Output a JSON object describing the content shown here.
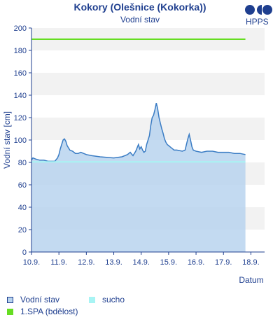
{
  "header": {
    "title": "Kokory (Olešnice (Kokorka))",
    "subtitle": "Vodní stav",
    "logo_text": "HPPS"
  },
  "legend": [
    {
      "label": "Vodní stav",
      "color": "#b8d4ee"
    },
    {
      "label": "sucho",
      "color": "#a8f4f4"
    },
    {
      "label": "1.SPA (bdělost)",
      "color": "#66dd22"
    }
  ],
  "chart_data": {
    "type": "area",
    "xlabel": "Datum",
    "ylabel": "Vodní stav [cm]",
    "xlim": [
      0,
      8.5
    ],
    "ylim": [
      0,
      200
    ],
    "y_ticks": [
      0,
      20,
      40,
      60,
      80,
      100,
      120,
      140,
      160,
      180,
      200
    ],
    "x_ticks": [
      "10.9.",
      "11.9.",
      "12.9.",
      "13.9.",
      "14.9.",
      "15.9.",
      "16.9.",
      "17.9.",
      "18.9."
    ],
    "grid": "horizontal bands",
    "series": [
      {
        "name": "Vodní stav",
        "color": "#3a7cc4",
        "fill": "#b8d4ee",
        "x": [
          0.0,
          0.05,
          0.15,
          0.3,
          0.45,
          0.6,
          0.75,
          0.85,
          0.95,
          1.0,
          1.05,
          1.1,
          1.15,
          1.2,
          1.25,
          1.3,
          1.4,
          1.5,
          1.6,
          1.7,
          1.8,
          1.9,
          2.0,
          2.2,
          2.5,
          3.0,
          3.3,
          3.5,
          3.6,
          3.7,
          3.8,
          3.9,
          3.95,
          4.0,
          4.05,
          4.1,
          4.15,
          4.2,
          4.25,
          4.3,
          4.35,
          4.4,
          4.45,
          4.5,
          4.55,
          4.6,
          4.65,
          4.7,
          4.75,
          4.8,
          4.85,
          4.9,
          4.95,
          5.0,
          5.05,
          5.1,
          5.15,
          5.2,
          5.3,
          5.5,
          5.6,
          5.7,
          5.75,
          5.8,
          5.85,
          5.9,
          6.0,
          6.2,
          6.4,
          6.6,
          6.8,
          7.0,
          7.2,
          7.4,
          7.6,
          7.8
        ],
        "values": [
          82,
          84,
          83,
          82,
          82,
          81,
          81,
          81,
          84,
          87,
          92,
          96,
          100,
          101,
          99,
          95,
          91,
          90,
          88,
          88,
          89,
          88,
          87,
          86,
          85,
          84,
          85,
          87,
          89,
          86,
          90,
          96,
          92,
          94,
          91,
          89,
          90,
          96,
          100,
          104,
          113,
          120,
          122,
          127,
          133,
          128,
          120,
          115,
          110,
          106,
          101,
          98,
          96,
          95,
          94,
          93,
          92,
          91,
          91,
          90,
          91,
          101,
          105,
          100,
          94,
          91,
          90,
          89,
          90,
          90,
          89,
          89,
          89,
          88,
          88,
          87
        ]
      },
      {
        "name": "sucho",
        "color": "#a8f4f4",
        "x": [
          0.0,
          7.8
        ],
        "values": [
          80.5,
          80.5
        ]
      },
      {
        "name": "1.SPA (bdělost)",
        "color": "#66dd22",
        "x": [
          0.0,
          7.8
        ],
        "values": [
          190,
          190
        ]
      }
    ]
  }
}
